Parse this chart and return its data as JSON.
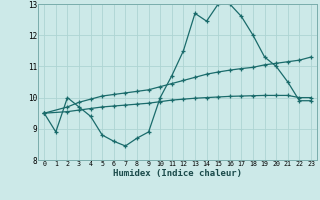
{
  "xlabel": "Humidex (Indice chaleur)",
  "background_color": "#cce9e8",
  "grid_color": "#aed4d3",
  "line_color": "#1a6b6b",
  "xlim": [
    -0.5,
    23.5
  ],
  "ylim": [
    8,
    13
  ],
  "yticks": [
    8,
    9,
    10,
    11,
    12,
    13
  ],
  "xticks": [
    0,
    1,
    2,
    3,
    4,
    5,
    6,
    7,
    8,
    9,
    10,
    11,
    12,
    13,
    14,
    15,
    16,
    17,
    18,
    19,
    20,
    21,
    22,
    23
  ],
  "line1_x": [
    0,
    1,
    2,
    3,
    4,
    5,
    6,
    7,
    8,
    9,
    10,
    11,
    12,
    13,
    14,
    15,
    16,
    17,
    18,
    19,
    20,
    21,
    22,
    23
  ],
  "line1_y": [
    9.5,
    8.9,
    10.0,
    9.7,
    9.4,
    8.8,
    8.6,
    8.45,
    8.7,
    8.9,
    10.0,
    10.7,
    11.5,
    12.7,
    12.45,
    13.0,
    13.0,
    12.6,
    12.0,
    11.3,
    11.0,
    10.5,
    9.9,
    9.9
  ],
  "line2_x": [
    0,
    2,
    3,
    4,
    5,
    6,
    7,
    8,
    9,
    10,
    11,
    12,
    13,
    14,
    15,
    16,
    17,
    18,
    19,
    20,
    21,
    22,
    23
  ],
  "line2_y": [
    9.5,
    9.7,
    9.85,
    9.95,
    10.05,
    10.1,
    10.15,
    10.2,
    10.25,
    10.35,
    10.45,
    10.55,
    10.65,
    10.75,
    10.82,
    10.88,
    10.93,
    10.97,
    11.05,
    11.1,
    11.15,
    11.2,
    11.3
  ],
  "line3_x": [
    0,
    2,
    3,
    4,
    5,
    6,
    7,
    8,
    9,
    10,
    11,
    12,
    13,
    14,
    15,
    16,
    17,
    18,
    19,
    20,
    21,
    22,
    23
  ],
  "line3_y": [
    9.5,
    9.55,
    9.6,
    9.65,
    9.7,
    9.73,
    9.76,
    9.79,
    9.82,
    9.87,
    9.92,
    9.95,
    9.98,
    10.0,
    10.02,
    10.04,
    10.05,
    10.06,
    10.07,
    10.07,
    10.07,
    10.0,
    10.0
  ]
}
